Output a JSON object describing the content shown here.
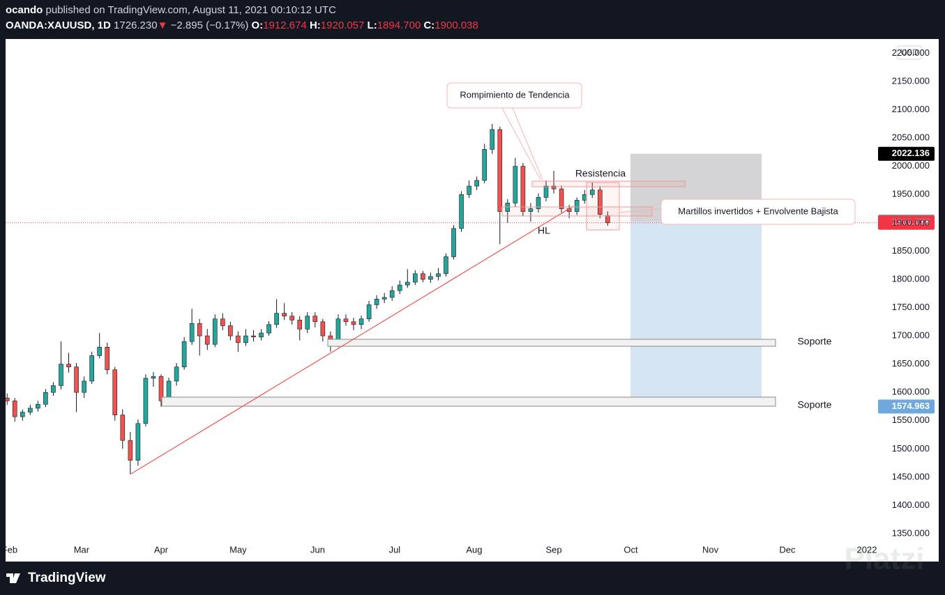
{
  "header": {
    "publisher": "ocando",
    "published": "published on TradingView.com, August 11, 2021 00:10:12 UTC",
    "symbol": "OANDA:XAUUSD, 1D",
    "last": "1726.230",
    "arrow": "▼",
    "change": "−2.895 (−0.17%)",
    "o_label": "O:",
    "o": "1912.674",
    "h_label": "H:",
    "h": "1920.057",
    "l_label": "L:",
    "l": "1894.700",
    "c_label": "C:",
    "c": "1900.038"
  },
  "chart_data": {
    "type": "candlestick",
    "currency": "USD",
    "up_color": "#26a69a",
    "down_color": "#ef5350",
    "x": [
      31,
      34,
      37,
      40,
      43,
      46,
      49,
      52,
      55,
      58,
      61,
      64,
      67,
      70,
      73,
      76,
      79,
      82,
      85,
      88,
      91,
      94,
      97,
      100,
      103,
      106,
      109,
      112,
      115,
      118,
      121,
      124,
      127,
      130,
      133,
      136,
      139,
      142,
      145,
      148,
      151,
      154,
      157,
      160,
      163,
      166,
      169,
      172,
      175,
      178,
      181,
      184,
      187,
      190,
      193,
      196,
      199,
      202,
      205,
      208,
      211,
      214,
      217,
      220,
      223,
      226,
      229,
      232,
      235,
      238,
      241,
      244,
      247,
      250,
      253,
      256,
      259,
      262,
      265
    ],
    "ohlc": [
      [
        1590,
        1598,
        1578,
        1585
      ],
      [
        1585,
        1590,
        1548,
        1557
      ],
      [
        1557,
        1570,
        1550,
        1565
      ],
      [
        1565,
        1578,
        1560,
        1572
      ],
      [
        1572,
        1585,
        1566,
        1579
      ],
      [
        1579,
        1606,
        1574,
        1600
      ],
      [
        1600,
        1618,
        1594,
        1612
      ],
      [
        1612,
        1690,
        1605,
        1650
      ],
      [
        1650,
        1670,
        1635,
        1645
      ],
      [
        1645,
        1652,
        1565,
        1600
      ],
      [
        1600,
        1628,
        1590,
        1620
      ],
      [
        1620,
        1672,
        1615,
        1665
      ],
      [
        1665,
        1705,
        1660,
        1680
      ],
      [
        1680,
        1688,
        1632,
        1640
      ],
      [
        1640,
        1645,
        1550,
        1560
      ],
      [
        1560,
        1570,
        1500,
        1515
      ],
      [
        1515,
        1530,
        1455,
        1480
      ],
      [
        1480,
        1552,
        1470,
        1545
      ],
      [
        1545,
        1632,
        1540,
        1625
      ],
      [
        1625,
        1636,
        1610,
        1628
      ],
      [
        1628,
        1632,
        1575,
        1585
      ],
      [
        1585,
        1626,
        1578,
        1620
      ],
      [
        1620,
        1652,
        1612,
        1645
      ],
      [
        1645,
        1698,
        1640,
        1690
      ],
      [
        1690,
        1748,
        1684,
        1722
      ],
      [
        1722,
        1730,
        1665,
        1700
      ],
      [
        1700,
        1712,
        1675,
        1685
      ],
      [
        1685,
        1738,
        1680,
        1730
      ],
      [
        1730,
        1740,
        1710,
        1718
      ],
      [
        1718,
        1725,
        1692,
        1700
      ],
      [
        1700,
        1708,
        1672,
        1688
      ],
      [
        1688,
        1712,
        1682,
        1700
      ],
      [
        1700,
        1710,
        1690,
        1698
      ],
      [
        1698,
        1712,
        1692,
        1705
      ],
      [
        1705,
        1726,
        1700,
        1720
      ],
      [
        1720,
        1765,
        1714,
        1740
      ],
      [
        1740,
        1758,
        1728,
        1735
      ],
      [
        1735,
        1742,
        1720,
        1728
      ],
      [
        1728,
        1735,
        1692,
        1712
      ],
      [
        1712,
        1742,
        1705,
        1735
      ],
      [
        1735,
        1742,
        1715,
        1725
      ],
      [
        1725,
        1730,
        1690,
        1700
      ],
      [
        1700,
        1708,
        1672,
        1685
      ],
      [
        1685,
        1738,
        1680,
        1730
      ],
      [
        1730,
        1738,
        1718,
        1725
      ],
      [
        1725,
        1732,
        1710,
        1720
      ],
      [
        1720,
        1736,
        1712,
        1730
      ],
      [
        1730,
        1762,
        1725,
        1755
      ],
      [
        1755,
        1772,
        1748,
        1765
      ],
      [
        1765,
        1776,
        1758,
        1768
      ],
      [
        1768,
        1788,
        1762,
        1780
      ],
      [
        1780,
        1798,
        1774,
        1790
      ],
      [
        1790,
        1818,
        1785,
        1795
      ],
      [
        1795,
        1816,
        1790,
        1810
      ],
      [
        1810,
        1815,
        1795,
        1800
      ],
      [
        1800,
        1812,
        1794,
        1805
      ],
      [
        1805,
        1820,
        1798,
        1810
      ],
      [
        1810,
        1846,
        1805,
        1840
      ],
      [
        1840,
        1896,
        1835,
        1890
      ],
      [
        1890,
        1956,
        1884,
        1950
      ],
      [
        1950,
        1975,
        1944,
        1965
      ],
      [
        1965,
        1982,
        1958,
        1975
      ],
      [
        1975,
        2040,
        1970,
        2030
      ],
      [
        2030,
        2075,
        2022,
        2065
      ],
      [
        2065,
        2070,
        1862,
        1920
      ],
      [
        1920,
        1942,
        1900,
        1935
      ],
      [
        1935,
        2015,
        1928,
        2000
      ],
      [
        2000,
        2006,
        1912,
        1920
      ],
      [
        1920,
        1935,
        1902,
        1925
      ],
      [
        1925,
        1952,
        1918,
        1945
      ],
      [
        1945,
        1975,
        1938,
        1965
      ],
      [
        1965,
        1992,
        1952,
        1960
      ],
      [
        1960,
        1966,
        1918,
        1925
      ],
      [
        1925,
        1932,
        1908,
        1920
      ],
      [
        1920,
        1945,
        1914,
        1940
      ],
      [
        1940,
        1958,
        1934,
        1950
      ],
      [
        1950,
        1972,
        1944,
        1958
      ],
      [
        1958,
        1965,
        1908,
        1915
      ],
      [
        1912.674,
        1920.057,
        1894.7,
        1900.038
      ]
    ],
    "xlim": [
      30.4,
      369.8
    ],
    "xticks": [
      {
        "value": 32,
        "label": "Feb"
      },
      {
        "value": 60,
        "label": "Mar"
      },
      {
        "value": 91,
        "label": "Apr"
      },
      {
        "value": 121,
        "label": "May"
      },
      {
        "value": 152,
        "label": "Jun"
      },
      {
        "value": 182,
        "label": "Jul"
      },
      {
        "value": 213,
        "label": "Aug"
      },
      {
        "value": 244,
        "label": "Sep"
      },
      {
        "value": 274,
        "label": "Oct"
      },
      {
        "value": 305,
        "label": "Nov"
      },
      {
        "value": 335,
        "label": "Dec"
      },
      {
        "value": 366,
        "label": "2022"
      }
    ],
    "ylim": [
      1300.7,
      2225.2
    ],
    "yticks": [
      {
        "value": 1350,
        "label": "1350.000"
      },
      {
        "value": 1400,
        "label": "1400.000"
      },
      {
        "value": 1450,
        "label": "1450.000"
      },
      {
        "value": 1500,
        "label": "1500.000"
      },
      {
        "value": 1550,
        "label": "1550.000"
      },
      {
        "value": 1600,
        "label": "1600.000"
      },
      {
        "value": 1650,
        "label": "1650.000"
      },
      {
        "value": 1700,
        "label": "1700.000"
      },
      {
        "value": 1750,
        "label": "1750.000"
      },
      {
        "value": 1800,
        "label": "1800.000"
      },
      {
        "value": 1850,
        "label": "1850.000"
      },
      {
        "value": 1900,
        "label": "1900.000"
      },
      {
        "value": 1950,
        "label": "1950.000"
      },
      {
        "value": 2000,
        "label": "2000.000"
      },
      {
        "value": 2050,
        "label": "2050.000"
      },
      {
        "value": 2100,
        "label": "2100.000"
      },
      {
        "value": 2150,
        "label": "2150.000"
      },
      {
        "value": 2200,
        "label": "2200.000"
      }
    ],
    "price_labels": [
      {
        "value": 2022.136,
        "label": "2022.136",
        "color": "#000000"
      },
      {
        "value": 1901.862,
        "label": "1901.862",
        "color": "#787b86"
      },
      {
        "value": 1900.038,
        "label": "1900.038",
        "color": "#f23645"
      },
      {
        "value": 1574.963,
        "label": "1574.963",
        "color": "#6fa8dc"
      }
    ],
    "annotations": {
      "breakout": "Rompimiento de Tendencia",
      "resistance": "Resistencia",
      "higher_low": "HL",
      "pattern": "Martillos invertidos + Envolvente Bajista",
      "support_1": "Soporte",
      "support_2": "Soporte"
    }
  },
  "footer": {
    "brand": "TradingView",
    "watermark": "Platzi"
  }
}
